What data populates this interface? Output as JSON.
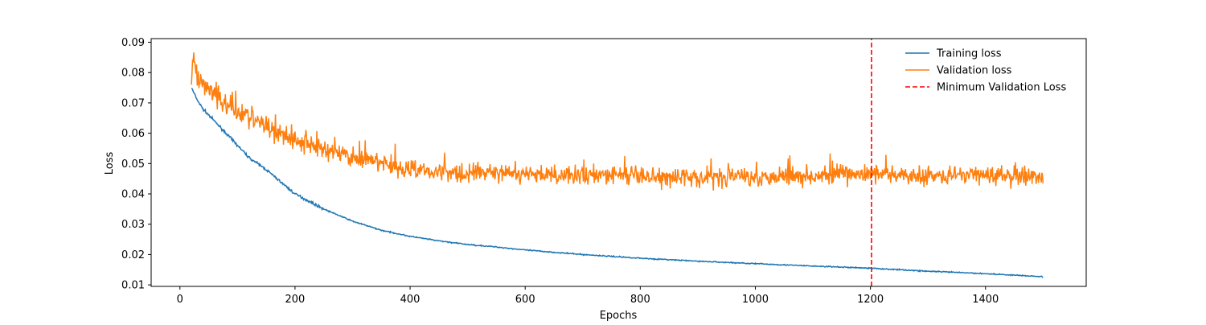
{
  "chart_data": {
    "type": "line",
    "xlabel": "Epochs",
    "ylabel": "Loss",
    "xlim": [
      -50,
      1575
    ],
    "ylim": [
      0.0095,
      0.0912
    ],
    "xticks": [
      0,
      200,
      400,
      600,
      800,
      1000,
      1200,
      1400
    ],
    "yticks": [
      0.01,
      0.02,
      0.03,
      0.04,
      0.05,
      0.06,
      0.07,
      0.08,
      0.09
    ],
    "grid": false,
    "legend_position": "top-right",
    "series": [
      {
        "name": "Training loss",
        "color": "#1f77b4",
        "x": [
          20,
          30,
          40,
          60,
          80,
          100,
          120,
          150,
          175,
          200,
          250,
          300,
          350,
          400,
          450,
          500,
          550,
          600,
          700,
          800,
          900,
          1000,
          1100,
          1200,
          1300,
          1400,
          1500
        ],
        "y": [
          0.075,
          0.071,
          0.068,
          0.064,
          0.06,
          0.056,
          0.052,
          0.048,
          0.044,
          0.04,
          0.035,
          0.031,
          0.028,
          0.026,
          0.0245,
          0.0233,
          0.0225,
          0.0215,
          0.02,
          0.0188,
          0.0178,
          0.017,
          0.0162,
          0.0155,
          0.0145,
          0.0137,
          0.0127
        ]
      },
      {
        "name": "Validation loss",
        "color": "#ff7f0e",
        "x": [
          20,
          25,
          30,
          40,
          60,
          80,
          100,
          130,
          150,
          200,
          250,
          300,
          350,
          400,
          500,
          600,
          700,
          800,
          900,
          1000,
          1100,
          1200,
          1300,
          1400,
          1500
        ],
        "y": [
          0.076,
          0.084,
          0.078,
          0.076,
          0.073,
          0.07,
          0.068,
          0.064,
          0.062,
          0.058,
          0.055,
          0.052,
          0.05,
          0.048,
          0.047,
          0.0465,
          0.0462,
          0.0458,
          0.0455,
          0.0458,
          0.0462,
          0.0465,
          0.0462,
          0.0462,
          0.0455
        ]
      },
      {
        "name": "Minimum Validation Loss",
        "color": "#ff0000",
        "style": "dashed",
        "x": [
          1202,
          1202
        ],
        "y": [
          0.0095,
          0.0912
        ]
      }
    ]
  }
}
